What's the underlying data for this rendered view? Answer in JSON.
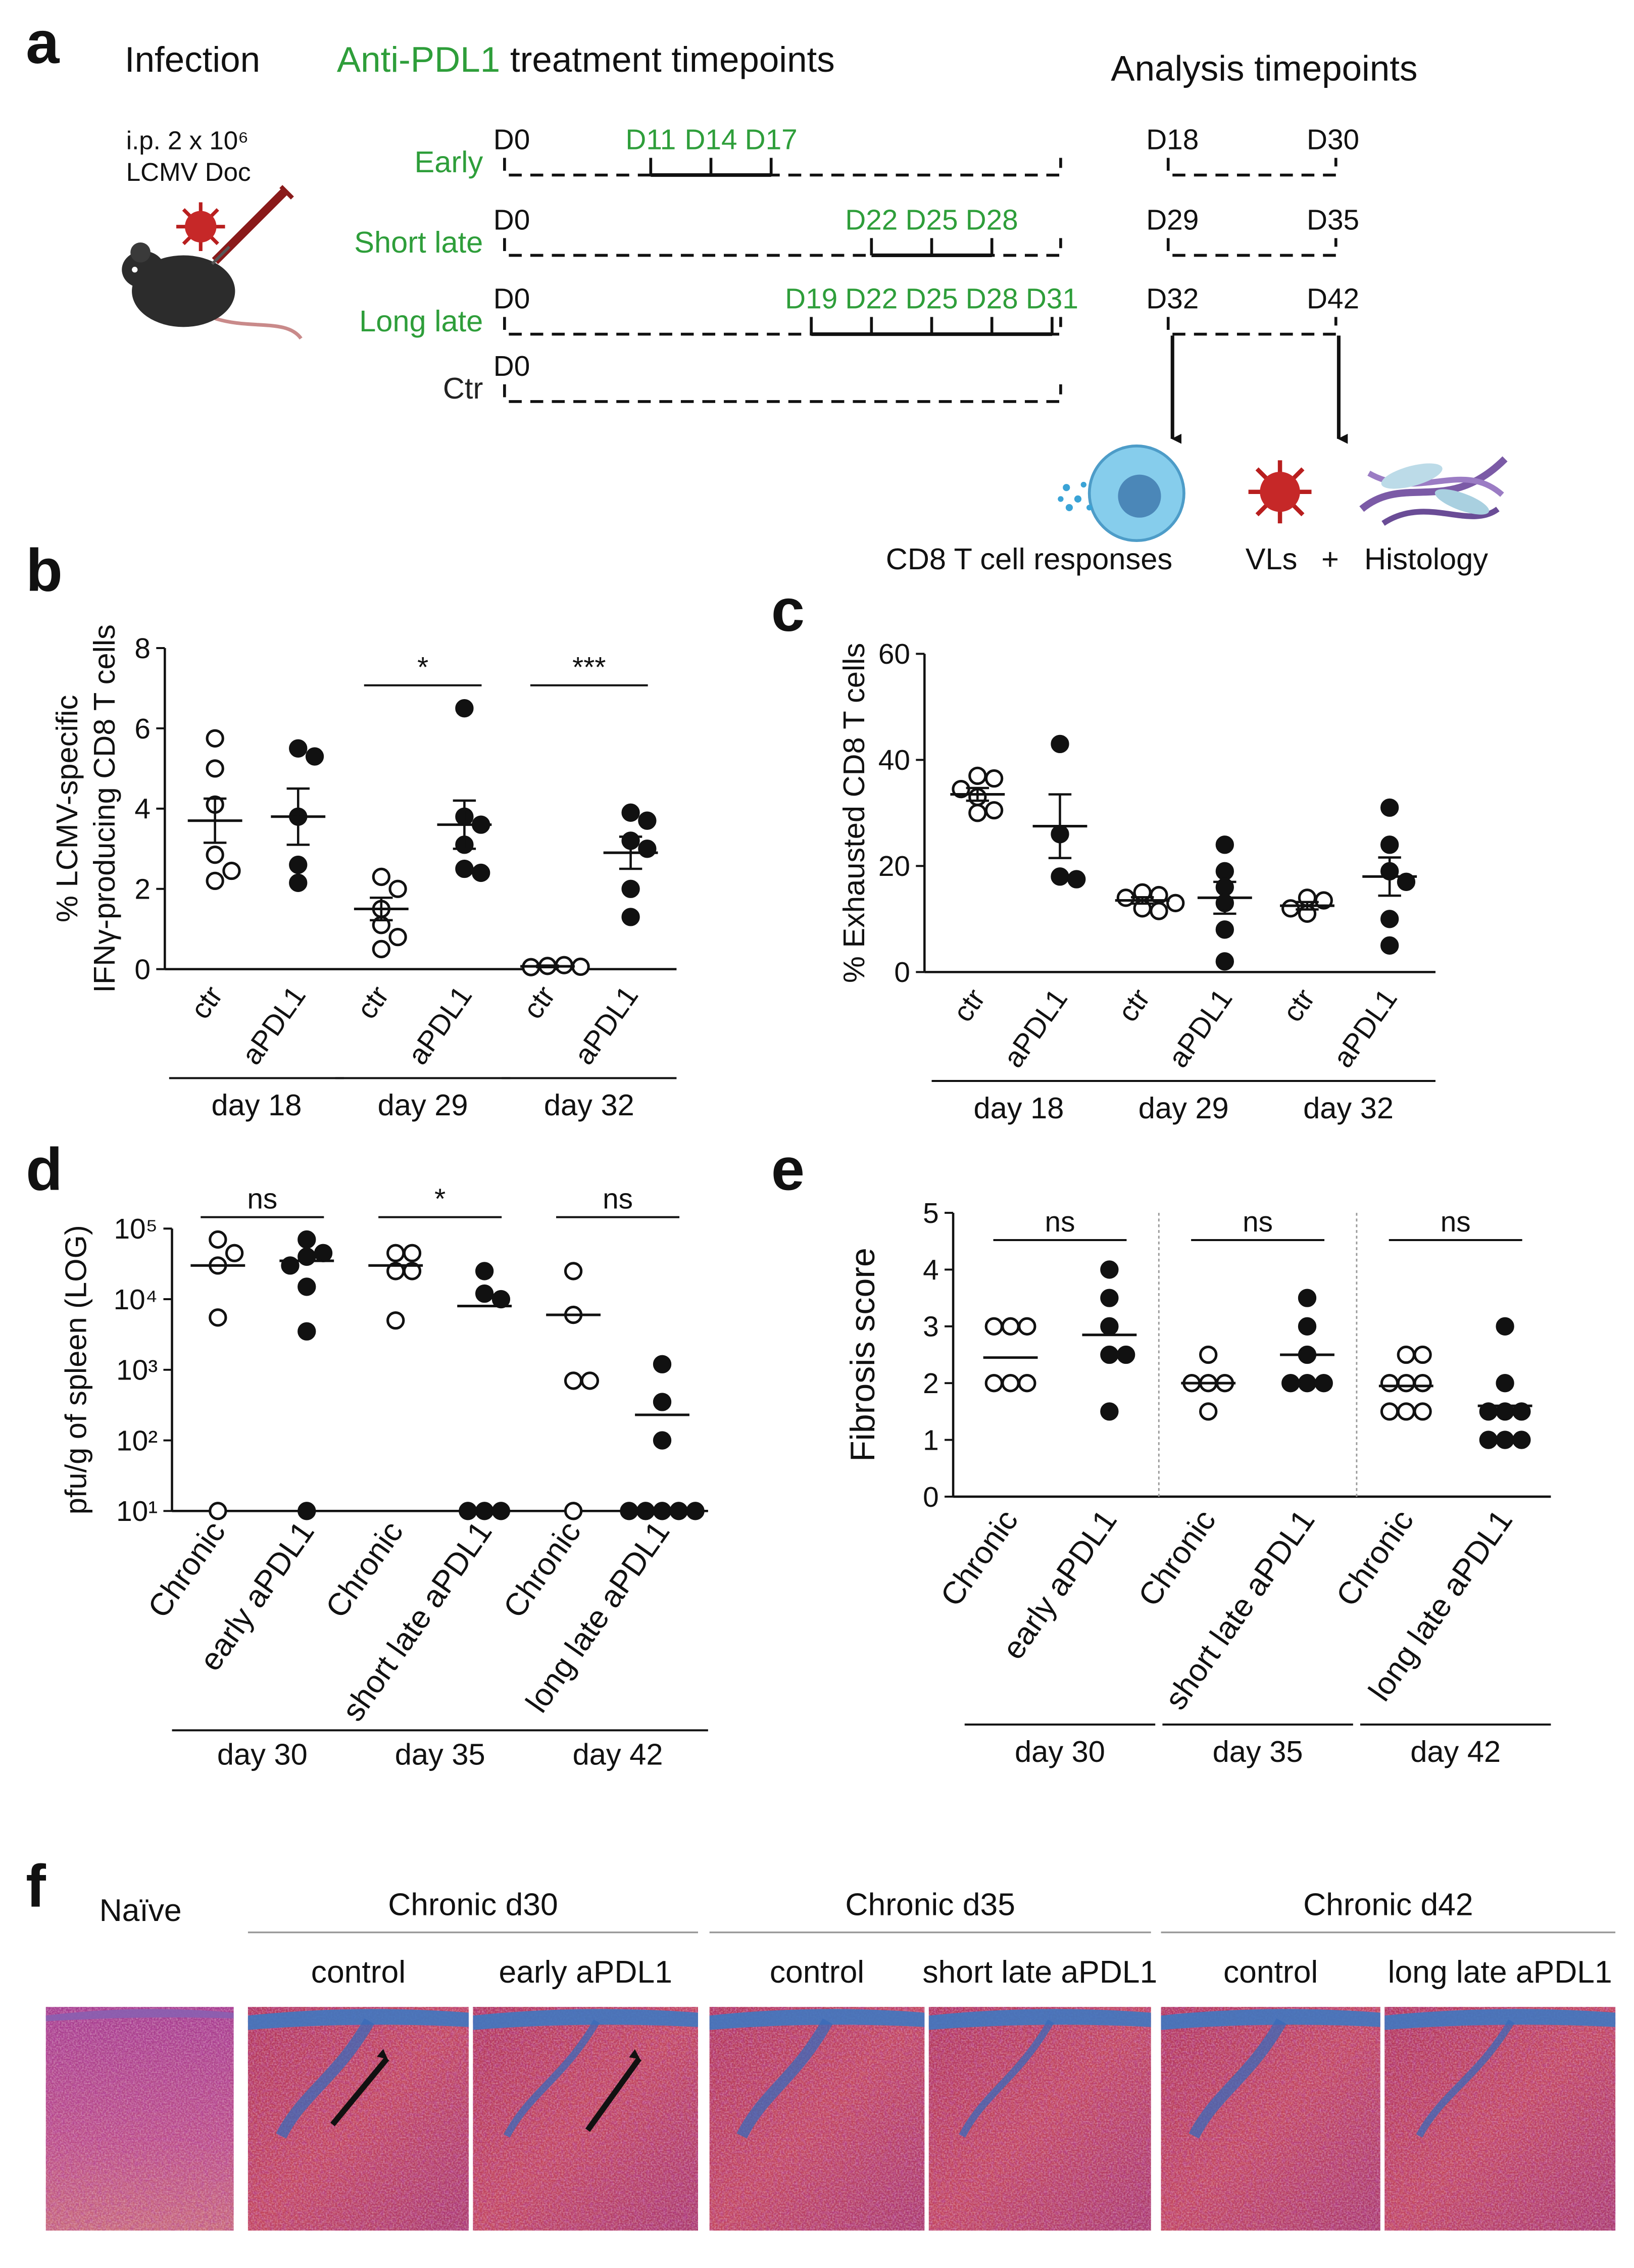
{
  "panel_labels": [
    "a",
    "b",
    "c",
    "d",
    "e",
    "f"
  ],
  "diagram": {
    "infection": {
      "title": "Infection",
      "dose": "i.p. 2 x 10⁶",
      "virus": "LCMV Doc"
    },
    "treatment_title": [
      "Anti-PDL1",
      "treatment timepoints"
    ],
    "treatment_color": "#2e9e3a",
    "analysis_title": "Analysis timepoints",
    "rows": [
      {
        "name": "Early",
        "color": "#2e9e3a",
        "start": "D0",
        "days": [
          {
            "value": 11,
            "label": "D11"
          },
          {
            "value": 14,
            "label": "D14"
          },
          {
            "value": 17,
            "label": "D17"
          }
        ],
        "analysis": [
          "D18",
          "D30"
        ]
      },
      {
        "name": "Short late",
        "color": "#2e9e3a",
        "start": "D0",
        "days": [
          {
            "value": 22,
            "label": "D22"
          },
          {
            "value": 25,
            "label": "D25"
          },
          {
            "value": 28,
            "label": "D28"
          }
        ],
        "analysis": [
          "D29",
          "D35"
        ]
      },
      {
        "name": "Long late",
        "color": "#2e9e3a",
        "start": "D0",
        "days": [
          {
            "value": 19,
            "label": "D19"
          },
          {
            "value": 22,
            "label": "D22"
          },
          {
            "value": 25,
            "label": "D25"
          },
          {
            "value": 28,
            "label": "D28"
          },
          {
            "value": 31,
            "label": "D31"
          }
        ],
        "analysis": [
          "D32",
          "D42"
        ]
      },
      {
        "name": "Ctr",
        "color": "#222222",
        "start": "D0",
        "days": [],
        "analysis": []
      }
    ],
    "readouts": [
      "CD8 T cell responses",
      "VLs",
      "+",
      "Histology"
    ]
  },
  "chart_data": [
    {
      "type": "dotplot",
      "ylabel": [
        "% LCMV-specific",
        "IFNγ-producing CD8 T cells"
      ],
      "ylim": [
        0,
        8
      ],
      "yticks": [
        0,
        2,
        4,
        6,
        8
      ],
      "categories": [
        "ctr",
        "aPDL1",
        "ctr",
        "aPDL1",
        "ctr",
        "aPDL1"
      ],
      "filled": [
        false,
        true,
        false,
        true,
        false,
        true
      ],
      "values": [
        [
          5.75,
          5.0,
          4.1,
          2.85,
          2.2,
          2.45
        ],
        [
          5.5,
          5.3,
          3.8,
          2.6,
          2.15
        ],
        [
          2.3,
          2.0,
          1.5,
          1.1,
          0.8,
          0.5
        ],
        [
          6.5,
          3.8,
          3.6,
          3.1,
          2.5,
          2.4
        ],
        [
          0.08,
          0.1,
          0.05,
          0.06
        ],
        [
          3.9,
          3.7,
          3.2,
          3.0,
          2.0,
          1.3
        ]
      ],
      "means": [
        3.7,
        3.8,
        1.5,
        3.6,
        0.07,
        2.9
      ],
      "sems": [
        0.55,
        0.7,
        0.28,
        0.6,
        0.02,
        0.4
      ],
      "groups": [
        "day 18",
        "day 29",
        "day 32"
      ],
      "pair_labels": [
        null,
        "*",
        "***"
      ]
    },
    {
      "type": "dotplot",
      "ylabel": [
        "% Exhausted CD8 T cells"
      ],
      "ylim": [
        0,
        60
      ],
      "yticks": [
        0,
        20,
        40,
        60
      ],
      "categories": [
        "ctr",
        "aPDL1",
        "ctr",
        "aPDL1",
        "ctr",
        "aPDL1"
      ],
      "filled": [
        false,
        true,
        false,
        true,
        false,
        true
      ],
      "values": [
        [
          37,
          36.5,
          34.5,
          33,
          30,
          30.5
        ],
        [
          43,
          26,
          18,
          17.5
        ],
        [
          15,
          14.5,
          14,
          13,
          12,
          11.5
        ],
        [
          24,
          19,
          16,
          13,
          8,
          2
        ],
        [
          14,
          13.5,
          12,
          11
        ],
        [
          31,
          24,
          19,
          17,
          10,
          5
        ]
      ],
      "means": [
        33.5,
        27.5,
        13.5,
        14,
        12.5,
        18
      ],
      "sems": [
        1.2,
        6,
        0.6,
        3,
        0.7,
        3.6
      ],
      "groups": [
        "day 18",
        "day 29",
        "day 32"
      ]
    },
    {
      "type": "dotplot",
      "ylabel": [
        "pfu/g of spleen (LOG)"
      ],
      "log": true,
      "ylim": [
        10,
        100000
      ],
      "yticks": [
        {
          "value": 10,
          "label": "10¹"
        },
        {
          "value": 100,
          "label": "10²"
        },
        {
          "value": 1000,
          "label": "10³"
        },
        {
          "value": 10000,
          "label": "10⁴"
        },
        {
          "value": 100000,
          "label": "10⁵"
        }
      ],
      "categories": [
        "Chronic",
        "early aPDL1",
        "Chronic",
        "short late aPDL1",
        "Chronic",
        "long late aPDL1"
      ],
      "filled": [
        false,
        true,
        false,
        true,
        false,
        true
      ],
      "values": [
        [
          70000,
          45000,
          30000,
          5500,
          10
        ],
        [
          70000,
          45000,
          40000,
          30000,
          15000,
          3500,
          10
        ],
        [
          45000,
          45000,
          25000,
          25000,
          5000
        ],
        [
          25000,
          12000,
          10000,
          10,
          10,
          10
        ],
        [
          25000,
          6000,
          700,
          700,
          10
        ],
        [
          1200,
          350,
          100,
          10,
          10,
          10,
          10,
          10
        ]
      ],
      "means": [
        30000,
        35000,
        30000,
        8000,
        6000,
        230
      ],
      "groups": [
        "day 30",
        "day 35",
        "day 42"
      ],
      "pair_labels": [
        "ns",
        "*",
        "ns"
      ]
    },
    {
      "type": "dotplot",
      "ylabel": [
        "Fibrosis score"
      ],
      "ylim": [
        0,
        5
      ],
      "yticks": [
        0,
        1,
        2,
        3,
        4,
        5
      ],
      "separators": true,
      "categories": [
        "Chronic",
        "early aPDL1",
        "Chronic",
        "short late aPDL1",
        "Chronic",
        "long late aPDL1"
      ],
      "filled": [
        false,
        true,
        false,
        true,
        false,
        true
      ],
      "values": [
        [
          3,
          3,
          3,
          2,
          2,
          2
        ],
        [
          4,
          3.5,
          3,
          2.5,
          2.5,
          1.5
        ],
        [
          2.5,
          2,
          2,
          2,
          1.5
        ],
        [
          3.5,
          3,
          2.5,
          2,
          2,
          2
        ],
        [
          2.5,
          2.5,
          2,
          2,
          2,
          1.5,
          1.5,
          1.5
        ],
        [
          3,
          2,
          1.5,
          1.5,
          1.5,
          1,
          1,
          1
        ]
      ],
      "means": [
        2.45,
        2.85,
        2,
        2.5,
        1.95,
        1.6
      ],
      "groups": [
        "day 30",
        "day 35",
        "day 42"
      ],
      "pair_labels": [
        "ns",
        "ns",
        "ns"
      ]
    }
  ],
  "histology": {
    "naive": "Naïve",
    "groups": [
      {
        "title": "Chronic d30",
        "panels": [
          "control",
          "early aPDL1"
        ]
      },
      {
        "title": "Chronic d35",
        "panels": [
          "control",
          "short late aPDL1"
        ]
      },
      {
        "title": "Chronic d42",
        "panels": [
          "control",
          "long late aPDL1"
        ]
      }
    ]
  }
}
